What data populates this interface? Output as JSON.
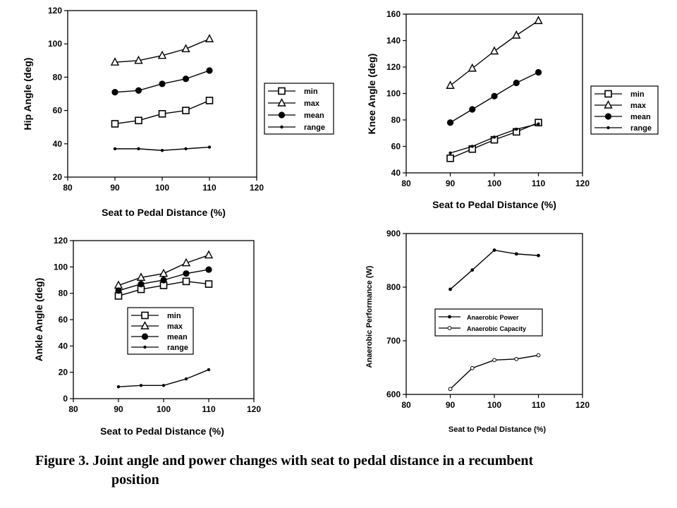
{
  "caption": {
    "line1": "Figure 3. Joint angle and power changes with seat to pedal distance in a recumbent",
    "line2": "position"
  },
  "chart_data": [
    {
      "id": "hip",
      "type": "line",
      "xlabel": "Seat to Pedal Distance (%)",
      "ylabel": "Hip Angle (deg)",
      "xlim": [
        80,
        120
      ],
      "ylim": [
        20,
        120
      ],
      "xticks": [
        80,
        90,
        100,
        110,
        120
      ],
      "yticks": [
        20,
        40,
        60,
        80,
        100,
        120
      ],
      "x": [
        90,
        95,
        100,
        105,
        110
      ],
      "legend_position": "right-outside",
      "series": [
        {
          "name": "min",
          "marker": "open-square",
          "values": [
            52,
            54,
            58,
            60,
            66
          ]
        },
        {
          "name": "max",
          "marker": "open-triangle",
          "values": [
            89,
            90,
            93,
            97,
            103
          ]
        },
        {
          "name": "mean",
          "marker": "filled-circle",
          "values": [
            71,
            72,
            76,
            79,
            84
          ]
        },
        {
          "name": "range",
          "marker": "small-dot",
          "values": [
            37,
            37,
            36,
            37,
            38
          ]
        }
      ]
    },
    {
      "id": "knee",
      "type": "line",
      "xlabel": "Seat to Pedal Distance (%)",
      "ylabel": "Knee Angle (deg)",
      "xlim": [
        80,
        120
      ],
      "ylim": [
        40,
        160
      ],
      "xticks": [
        80,
        90,
        100,
        110,
        120
      ],
      "yticks": [
        40,
        60,
        80,
        100,
        120,
        140,
        160
      ],
      "x": [
        90,
        95,
        100,
        105,
        110
      ],
      "legend_position": "right-outside",
      "series": [
        {
          "name": "min",
          "marker": "open-square",
          "values": [
            51,
            58,
            65,
            71,
            78
          ]
        },
        {
          "name": "max",
          "marker": "open-triangle",
          "values": [
            106,
            119,
            132,
            144,
            155
          ]
        },
        {
          "name": "mean",
          "marker": "filled-circle",
          "values": [
            78,
            88,
            98,
            108,
            116
          ]
        },
        {
          "name": "range",
          "marker": "small-dot",
          "values": [
            55,
            60,
            67,
            73,
            77
          ]
        }
      ]
    },
    {
      "id": "ankle",
      "type": "line",
      "xlabel": "Seat to Pedal Distance (%)",
      "ylabel": "Ankle Angle (deg)",
      "xlim": [
        80,
        120
      ],
      "ylim": [
        0,
        120
      ],
      "xticks": [
        80,
        90,
        100,
        110,
        120
      ],
      "yticks": [
        0,
        20,
        40,
        60,
        80,
        100,
        120
      ],
      "x": [
        90,
        95,
        100,
        105,
        110
      ],
      "legend_position": "inside-center",
      "series": [
        {
          "name": "min",
          "marker": "open-square",
          "values": [
            78,
            83,
            86,
            89,
            87
          ]
        },
        {
          "name": "max",
          "marker": "open-triangle",
          "values": [
            86,
            92,
            95,
            103,
            109
          ]
        },
        {
          "name": "mean",
          "marker": "filled-circle",
          "values": [
            82,
            87,
            90,
            95,
            98
          ]
        },
        {
          "name": "range",
          "marker": "small-dot",
          "values": [
            9,
            10,
            10,
            15,
            22
          ]
        }
      ]
    },
    {
      "id": "anaerobic",
      "type": "line",
      "xlabel": "Seat to Pedal Distance (%)",
      "ylabel": "Anaerobic Performance (W)",
      "xlim": [
        80,
        120
      ],
      "ylim": [
        600,
        900
      ],
      "xticks": [
        80,
        90,
        100,
        110,
        120
      ],
      "yticks": [
        600,
        700,
        800,
        900
      ],
      "x": [
        90,
        95,
        100,
        105,
        110
      ],
      "legend_position": "inside-center",
      "series": [
        {
          "name": "Anaerobic Power",
          "marker": "filled-small",
          "values": [
            796,
            832,
            869,
            862,
            859
          ]
        },
        {
          "name": "Anaerobic Capacity",
          "marker": "open-small",
          "values": [
            610,
            649,
            664,
            666,
            673
          ]
        }
      ]
    }
  ]
}
